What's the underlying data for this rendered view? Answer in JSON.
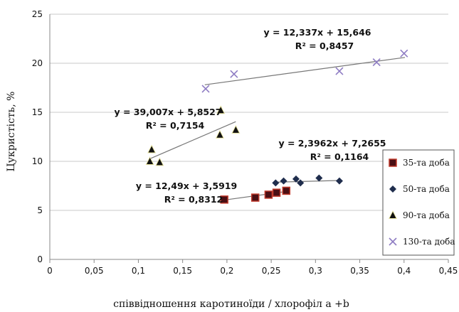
{
  "chart_data": {
    "type": "scatter",
    "title": "",
    "xlabel": "співвідношення каротиноїди / хлорофіл а +b",
    "ylabel": "Цукристість, %",
    "xlim": [
      0,
      0.45
    ],
    "ylim": [
      0,
      25
    ],
    "xticks": [
      "0",
      "0,05",
      "0,1",
      "0,15",
      "0,2",
      "0,25",
      "0,3",
      "0,35",
      "0,4",
      "0,45"
    ],
    "yticks": [
      "0",
      "5",
      "10",
      "15",
      "20",
      "25"
    ],
    "grid": "horizontal",
    "legend_position": "right",
    "series": [
      {
        "name": "35-та доба",
        "marker": "square",
        "color": "#c0392b",
        "x": [
          0.197,
          0.232,
          0.247,
          0.256,
          0.267
        ],
        "y": [
          6.1,
          6.3,
          6.6,
          6.8,
          7.0
        ],
        "trendline": {
          "slope": 12.49,
          "intercept": 3.5919,
          "x_range": [
            0.195,
            0.268
          ],
          "equation": "y = 12,49x + 3,5919",
          "r2": "R² = 0,8312"
        }
      },
      {
        "name": "50-та доба",
        "marker": "diamond",
        "color": "#1f2d4d",
        "x": [
          0.255,
          0.264,
          0.278,
          0.283,
          0.304,
          0.327
        ],
        "y": [
          7.8,
          8.0,
          8.2,
          7.8,
          8.3,
          8.0
        ],
        "trendline": {
          "slope": 2.3962,
          "intercept": 7.2655,
          "x_range": [
            0.253,
            0.329
          ],
          "equation": "y = 2,3962x + 7,2655",
          "r2": "R² = 0,1164"
        }
      },
      {
        "name": "90-та доба",
        "marker": "triangle",
        "color": "#111111",
        "x": [
          0.113,
          0.115,
          0.124,
          0.192,
          0.193,
          0.21
        ],
        "y": [
          10.0,
          11.2,
          9.9,
          12.7,
          15.2,
          13.2
        ],
        "trendline": {
          "slope": 39.007,
          "intercept": 5.8527,
          "x_range": [
            0.112,
            0.21
          ],
          "equation": "y = 39,007x + 5,8527",
          "r2": "R² = 0,7154"
        }
      },
      {
        "name": "130-та доба",
        "marker": "cross",
        "color": "#8e7cc3",
        "x": [
          0.176,
          0.208,
          0.327,
          0.369,
          0.4
        ],
        "y": [
          17.4,
          18.9,
          19.2,
          20.1,
          21.0
        ],
        "trendline": {
          "slope": 12.337,
          "intercept": 15.646,
          "x_range": [
            0.175,
            0.401
          ],
          "equation": "y = 12,337x + 15,646",
          "r2": "R² = 0,8457"
        }
      }
    ]
  }
}
